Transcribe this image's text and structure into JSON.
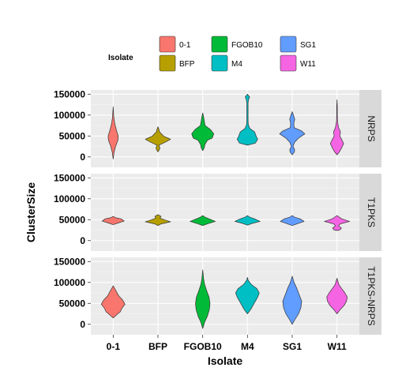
{
  "chart_data": {
    "type": "violin",
    "xlabel": "Isolate",
    "ylabel": "ClusterSize",
    "categories": [
      "0-1",
      "BFP",
      "FGOB10",
      "M4",
      "SG1",
      "W11"
    ],
    "colors": [
      "#F8766D",
      "#B79F00",
      "#00BA38",
      "#00BFC4",
      "#619CFF",
      "#F564E3"
    ],
    "ylim": [
      -25000,
      160000
    ],
    "yticks": [
      0,
      50000,
      100000,
      150000
    ],
    "ytick_labels": [
      "0",
      "50000",
      "100000",
      "150000"
    ],
    "grid": true,
    "legend": {
      "title": "Isolate",
      "position": "top",
      "entries": [
        "0-1",
        "BFP",
        "FGOB10",
        "M4",
        "SG1",
        "W11"
      ]
    },
    "panels": [
      {
        "name": "NRPS",
        "violins": [
          {
            "category": "0-1",
            "min": -5000,
            "max": 120000,
            "widths": [
              [
                -5000,
                0
              ],
              [
                10000,
                0.05
              ],
              [
                25000,
                0.15
              ],
              [
                40000,
                0.3
              ],
              [
                50000,
                0.32
              ],
              [
                62000,
                0.22
              ],
              [
                80000,
                0.1
              ],
              [
                95000,
                0.04
              ],
              [
                120000,
                0
              ]
            ]
          },
          {
            "category": "BFP",
            "min": 12000,
            "max": 72000,
            "widths": [
              [
                12000,
                0
              ],
              [
                18000,
                0.1
              ],
              [
                22000,
                0.12
              ],
              [
                28000,
                0.06
              ],
              [
                35000,
                0.45
              ],
              [
                42000,
                0.8
              ],
              [
                50000,
                0.35
              ],
              [
                60000,
                0.1
              ],
              [
                66000,
                0.06
              ],
              [
                72000,
                0
              ]
            ]
          },
          {
            "category": "FGOB10",
            "min": 15000,
            "max": 105000,
            "widths": [
              [
                15000,
                0
              ],
              [
                22000,
                0.1
              ],
              [
                30000,
                0.14
              ],
              [
                40000,
                0.3
              ],
              [
                45000,
                0.6
              ],
              [
                55000,
                0.7
              ],
              [
                65000,
                0.5
              ],
              [
                75000,
                0.15
              ],
              [
                85000,
                0.1
              ],
              [
                95000,
                0.06
              ],
              [
                105000,
                0
              ]
            ]
          },
          {
            "category": "M4",
            "min": 28000,
            "max": 150000,
            "widths": [
              [
                28000,
                0
              ],
              [
                33000,
                0.5
              ],
              [
                42000,
                0.65
              ],
              [
                50000,
                0.55
              ],
              [
                60000,
                0.45
              ],
              [
                68000,
                0.15
              ],
              [
                78000,
                0.05
              ],
              [
                90000,
                0.04
              ],
              [
                130000,
                0.04
              ],
              [
                138000,
                0.08
              ],
              [
                143000,
                0.14
              ],
              [
                148000,
                0.04
              ],
              [
                150000,
                0
              ]
            ]
          },
          {
            "category": "SG1",
            "min": 5000,
            "max": 108000,
            "widths": [
              [
                5000,
                0
              ],
              [
                12000,
                0.14
              ],
              [
                18000,
                0.15
              ],
              [
                25000,
                0.05
              ],
              [
                35000,
                0.15
              ],
              [
                45000,
                0.4
              ],
              [
                55000,
                0.8
              ],
              [
                62000,
                0.6
              ],
              [
                70000,
                0.12
              ],
              [
                80000,
                0.1
              ],
              [
                90000,
                0.16
              ],
              [
                100000,
                0.08
              ],
              [
                108000,
                0
              ]
            ]
          },
          {
            "category": "W11",
            "min": 5000,
            "max": 137000,
            "widths": [
              [
                5000,
                0
              ],
              [
                12000,
                0.15
              ],
              [
                22000,
                0.3
              ],
              [
                32000,
                0.42
              ],
              [
                40000,
                0.32
              ],
              [
                50000,
                0.18
              ],
              [
                60000,
                0.22
              ],
              [
                70000,
                0.1
              ],
              [
                85000,
                0.03
              ],
              [
                100000,
                0.02
              ],
              [
                120000,
                0.02
              ],
              [
                137000,
                0
              ]
            ]
          }
        ]
      },
      {
        "name": "T1PKS",
        "violins": [
          {
            "category": "0-1",
            "min": 38000,
            "max": 58000,
            "widths": [
              [
                38000,
                0
              ],
              [
                42000,
                0.3
              ],
              [
                47000,
                0.7
              ],
              [
                52000,
                0.5
              ],
              [
                55000,
                0.12
              ],
              [
                58000,
                0
              ]
            ]
          },
          {
            "category": "BFP",
            "min": 36000,
            "max": 62000,
            "widths": [
              [
                36000,
                0
              ],
              [
                40000,
                0.2
              ],
              [
                45000,
                0.8
              ],
              [
                50000,
                0.4
              ],
              [
                54000,
                0.12
              ],
              [
                58000,
                0.2
              ],
              [
                62000,
                0
              ]
            ]
          },
          {
            "category": "FGOB10",
            "min": 36000,
            "max": 60000,
            "widths": [
              [
                36000,
                0
              ],
              [
                40000,
                0.3
              ],
              [
                46000,
                0.8
              ],
              [
                52000,
                0.4
              ],
              [
                56000,
                0.15
              ],
              [
                60000,
                0
              ]
            ]
          },
          {
            "category": "M4",
            "min": 37000,
            "max": 60000,
            "widths": [
              [
                37000,
                0
              ],
              [
                41000,
                0.3
              ],
              [
                46000,
                0.8
              ],
              [
                52000,
                0.45
              ],
              [
                56000,
                0.15
              ],
              [
                60000,
                0
              ]
            ]
          },
          {
            "category": "SG1",
            "min": 36000,
            "max": 60000,
            "widths": [
              [
                36000,
                0
              ],
              [
                40000,
                0.3
              ],
              [
                46000,
                0.75
              ],
              [
                52000,
                0.5
              ],
              [
                56000,
                0.15
              ],
              [
                60000,
                0
              ]
            ]
          },
          {
            "category": "W11",
            "min": 24000,
            "max": 60000,
            "widths": [
              [
                24000,
                0
              ],
              [
                26000,
                0.2
              ],
              [
                30000,
                0.28
              ],
              [
                35000,
                0.1
              ],
              [
                40000,
                0.2
              ],
              [
                46000,
                0.8
              ],
              [
                52000,
                0.3
              ],
              [
                56000,
                0.15
              ],
              [
                60000,
                0
              ]
            ]
          }
        ]
      },
      {
        "name": "T1PKS-NRPS",
        "violins": [
          {
            "category": "0-1",
            "min": 15000,
            "max": 92000,
            "widths": [
              [
                15000,
                0
              ],
              [
                22000,
                0.2
              ],
              [
                30000,
                0.45
              ],
              [
                38000,
                0.55
              ],
              [
                48000,
                0.75
              ],
              [
                58000,
                0.6
              ],
              [
                68000,
                0.35
              ],
              [
                80000,
                0.18
              ],
              [
                92000,
                0
              ]
            ]
          },
          {
            "category": "BFP",
            "min": null,
            "max": null,
            "widths": []
          },
          {
            "category": "FGOB10",
            "min": -10000,
            "max": 130000,
            "widths": [
              [
                -10000,
                0
              ],
              [
                5000,
                0.12
              ],
              [
                20000,
                0.3
              ],
              [
                35000,
                0.42
              ],
              [
                50000,
                0.46
              ],
              [
                65000,
                0.4
              ],
              [
                80000,
                0.25
              ],
              [
                95000,
                0.12
              ],
              [
                110000,
                0.05
              ],
              [
                130000,
                0
              ]
            ]
          },
          {
            "category": "M4",
            "min": 25000,
            "max": 112000,
            "widths": [
              [
                25000,
                0
              ],
              [
                35000,
                0.2
              ],
              [
                45000,
                0.35
              ],
              [
                55000,
                0.5
              ],
              [
                65000,
                0.65
              ],
              [
                75000,
                0.75
              ],
              [
                85000,
                0.6
              ],
              [
                95000,
                0.25
              ],
              [
                105000,
                0.05
              ],
              [
                112000,
                0
              ]
            ]
          },
          {
            "category": "SG1",
            "min": 0,
            "max": 115000,
            "widths": [
              [
                0,
                0
              ],
              [
                10000,
                0.15
              ],
              [
                25000,
                0.4
              ],
              [
                40000,
                0.55
              ],
              [
                55000,
                0.6
              ],
              [
                70000,
                0.45
              ],
              [
                85000,
                0.3
              ],
              [
                100000,
                0.12
              ],
              [
                115000,
                0
              ]
            ]
          },
          {
            "category": "W11",
            "min": 25000,
            "max": 110000,
            "widths": [
              [
                25000,
                0
              ],
              [
                35000,
                0.2
              ],
              [
                45000,
                0.45
              ],
              [
                55000,
                0.6
              ],
              [
                65000,
                0.65
              ],
              [
                75000,
                0.5
              ],
              [
                85000,
                0.3
              ],
              [
                95000,
                0.12
              ],
              [
                110000,
                0
              ]
            ]
          }
        ]
      }
    ]
  }
}
